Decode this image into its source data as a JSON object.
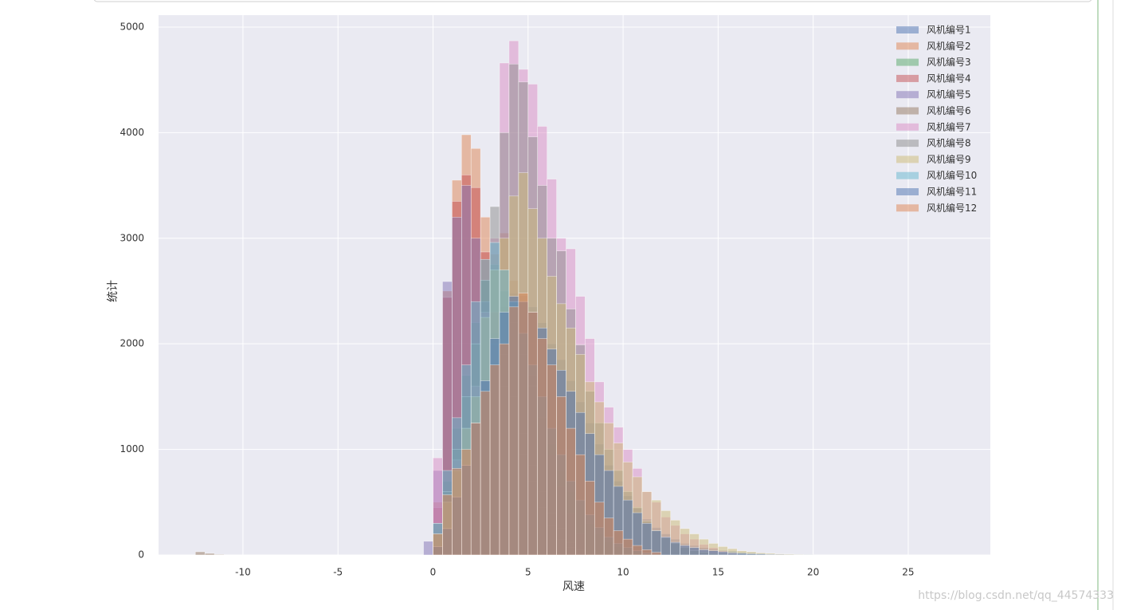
{
  "chart_data": {
    "type": "histogram",
    "xlabel": "风速",
    "ylabel": "统计",
    "watermark": "https://blog.csdn.net/qq_44574333",
    "xlim": [
      -14.44,
      29.32
    ],
    "ylim": [
      0,
      5113
    ],
    "xticks": [
      -10,
      -5,
      0,
      5,
      10,
      15,
      20,
      25
    ],
    "yticks": [
      0,
      1000,
      2000,
      3000,
      4000,
      5000
    ],
    "grid": true,
    "legend": "upper right",
    "alpha": 0.5,
    "series": [
      {
        "name": "风机编号1",
        "color": "#4c72b0",
        "bins": [
          0,
          0.5,
          1,
          1.5,
          2,
          2.5,
          3,
          3.5,
          4,
          4.5,
          5,
          5.5,
          6,
          6.5,
          7,
          7.5,
          8,
          8.5,
          9,
          9.5,
          10,
          10.5,
          11,
          11.5,
          12,
          12.5,
          13,
          13.5,
          14,
          14.5,
          15,
          15.5,
          16,
          16.5,
          17,
          17.5,
          18,
          18.5,
          19,
          19.5,
          20
        ],
        "values": [
          100,
          300,
          600,
          900,
          1300,
          1700,
          2100,
          2350,
          2480,
          2460,
          2350,
          2200,
          2000,
          1850,
          1650,
          1450,
          1250,
          1050,
          850,
          700,
          560,
          440,
          340,
          260,
          200,
          150,
          110,
          90,
          70,
          55,
          45,
          35,
          25,
          20,
          15,
          10,
          8,
          5,
          3,
          2
        ]
      },
      {
        "name": "风机编号2",
        "color": "#dd8452",
        "bins": [
          0,
          0.5,
          1,
          1.5,
          2,
          2.5,
          3,
          3.5,
          4,
          4.5,
          5,
          5.5,
          6,
          6.5,
          7,
          7.5,
          8
        ],
        "values": [
          500,
          2500,
          3550,
          3980,
          3850,
          3200,
          2850,
          3050,
          2600,
          2100,
          1700,
          1300,
          950,
          650,
          400,
          200
        ]
      },
      {
        "name": "风机编号3",
        "color": "#55a868",
        "bins": [
          0,
          0.5,
          1,
          1.5,
          2,
          2.5,
          3,
          3.5,
          4,
          4.5,
          5,
          5.5,
          6,
          6.5,
          7,
          7.5,
          8,
          8.5,
          9,
          9.5,
          10,
          10.5,
          11,
          11.5,
          12
        ],
        "values": [
          250,
          700,
          1200,
          1700,
          2200,
          2600,
          2750,
          2500,
          2200,
          1900,
          1600,
          1300,
          1050,
          800,
          600,
          430,
          300,
          200,
          130,
          80,
          50,
          30,
          15,
          8
        ]
      },
      {
        "name": "风机编号4",
        "color": "#c44e52",
        "bins": [
          0,
          0.5,
          1,
          1.5,
          2,
          2.5,
          3,
          3.5,
          4,
          4.5,
          5,
          5.5,
          6,
          6.5,
          7,
          7.5,
          8
        ],
        "values": [
          450,
          2440,
          3350,
          3600,
          3480,
          2870,
          2300,
          1900,
          1500,
          1150,
          850,
          600,
          400,
          250,
          120,
          50
        ]
      },
      {
        "name": "风机编号5",
        "color": "#8172b3",
        "bins": [
          -0.5,
          0,
          0.5,
          1,
          1.5,
          2,
          2.5,
          3,
          3.5,
          4,
          4.5,
          5,
          5.5,
          6,
          6.5,
          7,
          7.5
        ],
        "values": [
          130,
          800,
          2590,
          3200,
          3500,
          3000,
          2400,
          2000,
          1600,
          1250,
          950,
          700,
          450,
          280,
          150,
          70
        ]
      },
      {
        "name": "风机编号6",
        "color": "#937860",
        "bins": [
          -12.5,
          -12,
          -11.5,
          -11
        ],
        "values": [
          30,
          15,
          5
        ]
      },
      {
        "name": "风机编号7",
        "color": "#da8bc3",
        "bins": [
          0,
          0.5,
          1,
          1.5,
          2,
          2.5,
          3,
          3.5,
          4,
          4.5,
          5,
          5.5,
          6,
          6.5,
          7,
          7.5,
          8,
          8.5,
          9,
          9.5,
          10,
          10.5,
          11,
          11.5,
          12,
          12.5,
          13,
          13.5,
          14,
          14.5,
          15,
          15.5,
          16
        ],
        "values": [
          920,
          500,
          900,
          1200,
          1600,
          2300,
          3000,
          4660,
          4870,
          4600,
          4460,
          4060,
          3560,
          3000,
          2900,
          2450,
          2050,
          1640,
          1400,
          1210,
          1000,
          820,
          600,
          500,
          360,
          280,
          200,
          150,
          100,
          70,
          40,
          20
        ]
      },
      {
        "name": "风机编号8",
        "color": "#8c8c8c",
        "bins": [
          0,
          0.5,
          1,
          1.5,
          2,
          2.5,
          3,
          3.5,
          4,
          4.5,
          5,
          5.5,
          6,
          6.5,
          7,
          7.5,
          8,
          8.5,
          9,
          9.5,
          10,
          10.5,
          11,
          11.5,
          12,
          12.5,
          13,
          13.5,
          14,
          14.5,
          15,
          15.5,
          16
        ],
        "values": [
          300,
          600,
          1000,
          1500,
          2000,
          2600,
          3300,
          4000,
          4650,
          4480,
          3960,
          3500,
          3000,
          2880,
          2330,
          1990,
          1550,
          1250,
          1000,
          800,
          600,
          450,
          320,
          230,
          160,
          110,
          70,
          40,
          25,
          15,
          8,
          4
        ]
      },
      {
        "name": "风机编号9",
        "color": "#ccb974",
        "bins": [
          0,
          0.5,
          1,
          1.5,
          2,
          2.5,
          3,
          3.5,
          4,
          4.5,
          5,
          5.5,
          6,
          6.5,
          7,
          7.5,
          8,
          8.5,
          9,
          9.5,
          10,
          10.5,
          11,
          11.5,
          12,
          12.5,
          13,
          13.5,
          14,
          14.5,
          15,
          15.5,
          16,
          16.5,
          17,
          17.5,
          18,
          18.5,
          19,
          19.5,
          20
        ],
        "values": [
          200,
          500,
          800,
          1200,
          1500,
          2250,
          2700,
          3000,
          3400,
          3620,
          3280,
          3000,
          2640,
          2380,
          2150,
          1900,
          1640,
          1450,
          1250,
          1060,
          880,
          740,
          600,
          520,
          420,
          330,
          250,
          200,
          150,
          110,
          80,
          60,
          40,
          30,
          20,
          15,
          10,
          8,
          5,
          3
        ]
      },
      {
        "name": "风机编号10",
        "color": "#64b5cd",
        "bins": [
          0,
          0.5,
          1,
          1.5,
          2,
          2.5,
          3,
          3.5,
          4,
          4.5,
          5,
          5.5,
          6,
          6.5,
          7,
          7.5,
          8,
          8.5,
          9,
          9.5,
          10,
          10.5,
          11,
          11.5,
          12
        ],
        "values": [
          300,
          800,
          1300,
          1800,
          2400,
          2800,
          2960,
          2700,
          2400,
          2100,
          1800,
          1500,
          1200,
          950,
          700,
          520,
          380,
          260,
          170,
          110,
          70,
          40,
          20,
          10
        ]
      },
      {
        "name": "风机编号11",
        "color": "#4c72b0",
        "bins": [
          0,
          0.5,
          1,
          1.5,
          2,
          2.5,
          3,
          3.5,
          4,
          4.5,
          5,
          5.5,
          6,
          6.5,
          7,
          7.5,
          8,
          8.5,
          9,
          9.5,
          10,
          10.5,
          11,
          11.5,
          12,
          12.5,
          13,
          13.5,
          14,
          14.5,
          15,
          15.5,
          16,
          16.5,
          17,
          17.5,
          18,
          18.5,
          19,
          19.5,
          20
        ],
        "values": [
          80,
          250,
          550,
          850,
          1250,
          1650,
          2050,
          2300,
          2450,
          2400,
          2300,
          2150,
          1950,
          1750,
          1550,
          1350,
          1150,
          950,
          800,
          650,
          520,
          400,
          300,
          230,
          170,
          120,
          90,
          70,
          50,
          40,
          30,
          20,
          15,
          10,
          8,
          5,
          3,
          2,
          1,
          1
        ]
      },
      {
        "name": "风机编号12",
        "color": "#dd8452",
        "bins": [
          0,
          0.5,
          1,
          1.5,
          2,
          2.5,
          3,
          3.5,
          4,
          4.5,
          5,
          5.5,
          6,
          6.5,
          7,
          7.5,
          8,
          8.5,
          9,
          9.5,
          10,
          10.5,
          11,
          11.5,
          12
        ],
        "values": [
          200,
          570,
          820,
          1000,
          1250,
          1550,
          1800,
          2000,
          2350,
          2480,
          2300,
          2050,
          1800,
          1500,
          1200,
          950,
          700,
          500,
          350,
          230,
          150,
          90,
          50,
          25
        ]
      }
    ]
  }
}
